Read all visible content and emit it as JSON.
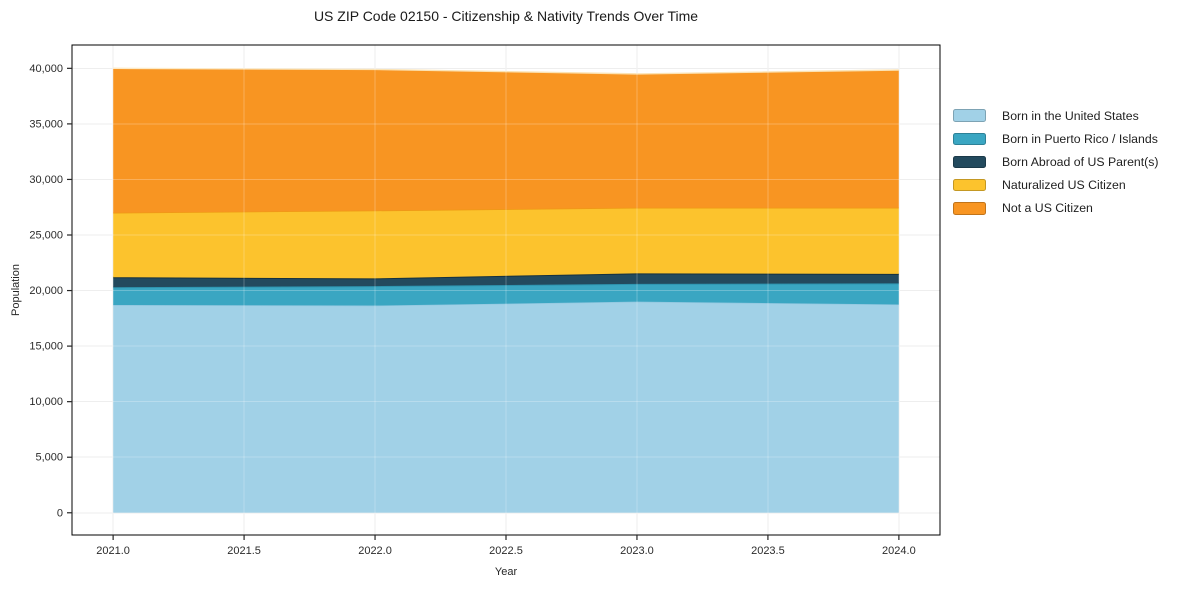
{
  "figure": {
    "title": "US ZIP Code 02150 - Citizenship & Nativity Trends Over Time",
    "xlabel": "Year",
    "ylabel": "Population"
  },
  "axes": {
    "x_ticks": [
      {
        "value": 2021.0,
        "label": "2021.0"
      },
      {
        "value": 2021.5,
        "label": "2021.5"
      },
      {
        "value": 2022.0,
        "label": "2022.0"
      },
      {
        "value": 2022.5,
        "label": "2022.5"
      },
      {
        "value": 2023.0,
        "label": "2023.0"
      },
      {
        "value": 2023.5,
        "label": "2023.5"
      },
      {
        "value": 2024.0,
        "label": "2024.0"
      }
    ],
    "y_ticks": [
      {
        "value": 0,
        "label": "0"
      },
      {
        "value": 5000,
        "label": "5,000"
      },
      {
        "value": 10000,
        "label": "10,000"
      },
      {
        "value": 15000,
        "label": "15,000"
      },
      {
        "value": 20000,
        "label": "20,000"
      },
      {
        "value": 25000,
        "label": "25,000"
      },
      {
        "value": 30000,
        "label": "30,000"
      },
      {
        "value": 35000,
        "label": "35,000"
      },
      {
        "value": 40000,
        "label": "40,000"
      }
    ]
  },
  "chart_data": {
    "type": "area",
    "stacked": true,
    "title": "US ZIP Code 02150 - Citizenship & Nativity Trends Over Time",
    "xlabel": "Year",
    "ylabel": "Population",
    "xlim": [
      2020.843,
      2024.157
    ],
    "ylim": [
      -2000,
      42100
    ],
    "grid": true,
    "legend_position": "outside-right",
    "x": [
      2021,
      2022,
      2023,
      2024
    ],
    "series": [
      {
        "name": "Born in the United States",
        "color": "#A1D1E7",
        "edge": "#8FC6DF",
        "values": [
          18700,
          18650,
          19000,
          18750
        ]
      },
      {
        "name": "Born in Puerto Rico / Islands",
        "color": "#3AA6C2",
        "edge": "#2E94AF",
        "values": [
          1600,
          1750,
          1600,
          1900
        ]
      },
      {
        "name": "Born Abroad of US Parent(s)",
        "color": "#234A5E",
        "edge": "#16313F",
        "values": [
          900,
          700,
          950,
          850
        ]
      },
      {
        "name": "Naturalized US Citizen",
        "color": "#FCC32D",
        "edge": "#EE9914",
        "values": [
          5800,
          6100,
          5900,
          5950
        ]
      },
      {
        "name": "Not a US Citizen",
        "color": "#F89522",
        "edge": "#FBE3B5",
        "values": [
          13000,
          12700,
          12050,
          12400
        ]
      }
    ],
    "stack_totals": [
      40000,
      39900,
      39500,
      39850
    ],
    "colors": {
      "grid": "#E9E9E9",
      "grid_overlay": "rgba(255,255,255,0.25)",
      "spine": "#000000",
      "tick": "#262626",
      "tick_label": "#2b2b2b"
    }
  }
}
